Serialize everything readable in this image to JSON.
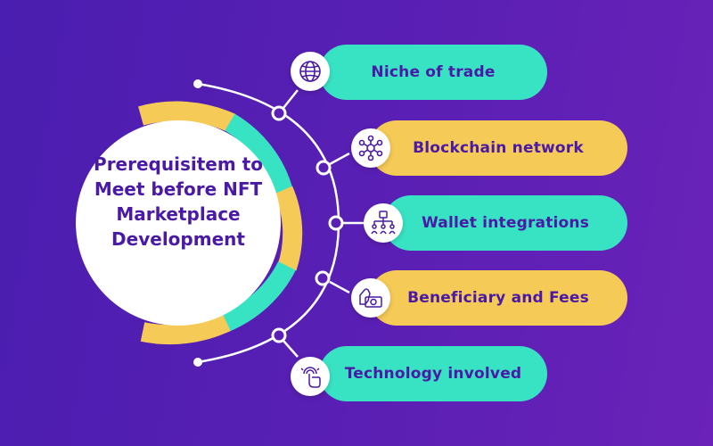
{
  "title": "Prerequisitem to Meet before NFT Marketplace Development",
  "colors": {
    "background": "#5a1fb4",
    "teal": "#38e3c4",
    "yellow": "#f6ca56",
    "text": "#4a1aa6",
    "white": "#ffffff"
  },
  "items": [
    {
      "label": "Niche of trade",
      "icon": "globe-icon",
      "color": "teal"
    },
    {
      "label": "Blockchain network",
      "icon": "network-icon",
      "color": "yellow"
    },
    {
      "label": "Wallet integrations",
      "icon": "wallet-hierarchy-icon",
      "color": "teal"
    },
    {
      "label": "Beneficiary and Fees",
      "icon": "hand-money-icon",
      "color": "yellow"
    },
    {
      "label": "Technology involved",
      "icon": "touch-fingerprint-icon",
      "color": "teal"
    }
  ]
}
